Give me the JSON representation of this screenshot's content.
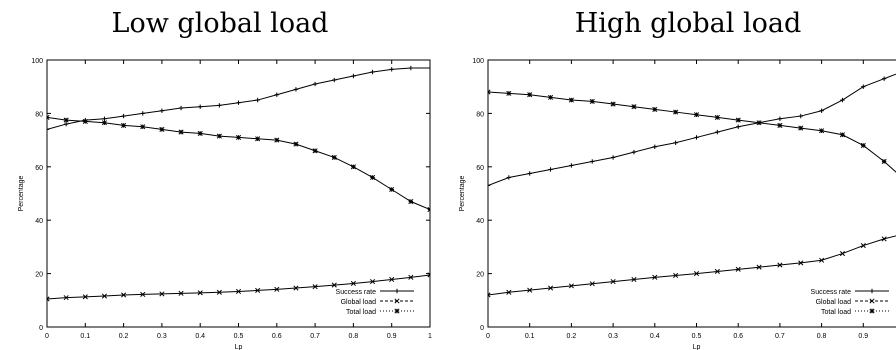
{
  "chart_data": [
    {
      "type": "line",
      "title": "Low global load",
      "xlabel": "Lp",
      "ylabel": "Percentage",
      "xlim": [
        0,
        1
      ],
      "ylim": [
        0,
        100
      ],
      "xticks": [
        "0",
        "0.1",
        "0.2",
        "0.3",
        "0.4",
        "0.5",
        "0.6",
        "0.7",
        "0.8",
        "0.9",
        "1"
      ],
      "yticks": [
        "0",
        "20",
        "40",
        "60",
        "80",
        "100"
      ],
      "grid": false,
      "legend": "bottom-right",
      "series": [
        {
          "name": "Success rate",
          "marker": "plus",
          "x": [
            0,
            0.05,
            0.1,
            0.15,
            0.2,
            0.25,
            0.3,
            0.35,
            0.4,
            0.45,
            0.5,
            0.55,
            0.6,
            0.65,
            0.7,
            0.75,
            0.8,
            0.85,
            0.9,
            0.95,
            1
          ],
          "y": [
            74,
            76,
            77.5,
            78,
            79,
            80,
            81,
            82,
            82.5,
            83,
            84,
            85,
            87,
            89,
            91,
            92.5,
            94,
            95.5,
            96.5,
            97,
            97
          ]
        },
        {
          "name": "Global load",
          "marker": "x",
          "x": [
            0,
            0.05,
            0.1,
            0.15,
            0.2,
            0.25,
            0.3,
            0.35,
            0.4,
            0.45,
            0.5,
            0.55,
            0.6,
            0.65,
            0.7,
            0.75,
            0.8,
            0.85,
            0.9,
            0.95,
            1
          ],
          "y": [
            10.5,
            11,
            11.3,
            11.6,
            12,
            12.2,
            12.4,
            12.6,
            12.8,
            13,
            13.3,
            13.7,
            14.1,
            14.6,
            15.1,
            15.7,
            16.3,
            17,
            17.8,
            18.6,
            19.5
          ]
        },
        {
          "name": "Total load",
          "marker": "asterisk",
          "x": [
            0,
            0.05,
            0.1,
            0.15,
            0.2,
            0.25,
            0.3,
            0.35,
            0.4,
            0.45,
            0.5,
            0.55,
            0.6,
            0.65,
            0.7,
            0.75,
            0.8,
            0.85,
            0.9,
            0.95,
            1
          ],
          "y": [
            78.5,
            77.5,
            77,
            76.5,
            75.5,
            75,
            74,
            73,
            72.5,
            71.5,
            71,
            70.5,
            70,
            68.5,
            66,
            63.5,
            60,
            56,
            51.5,
            47,
            44
          ]
        }
      ]
    },
    {
      "type": "line",
      "title": "High global load",
      "xlabel": "Lp",
      "ylabel": "Percentage",
      "xlim": [
        0,
        1
      ],
      "ylim": [
        0,
        100
      ],
      "xticks": [
        "0",
        "0.1",
        "0.2",
        "0.3",
        "0.4",
        "0.5",
        "0.6",
        "0.7",
        "0.8",
        "0.9"
      ],
      "yticks": [
        "0",
        "20",
        "40",
        "60",
        "80",
        "100"
      ],
      "grid": false,
      "legend": "bottom-right",
      "series": [
        {
          "name": "Success rate",
          "marker": "plus",
          "x": [
            0,
            0.05,
            0.1,
            0.15,
            0.2,
            0.25,
            0.3,
            0.35,
            0.4,
            0.45,
            0.5,
            0.55,
            0.6,
            0.65,
            0.7,
            0.75,
            0.8,
            0.85,
            0.9,
            0.95,
            1
          ],
          "y": [
            53,
            56,
            57.5,
            59,
            60.5,
            62,
            63.5,
            65.5,
            67.5,
            69,
            71,
            73,
            75,
            76.5,
            78,
            79,
            81,
            85,
            90,
            93,
            96
          ]
        },
        {
          "name": "Global load",
          "marker": "x",
          "x": [
            0,
            0.05,
            0.1,
            0.15,
            0.2,
            0.25,
            0.3,
            0.35,
            0.4,
            0.45,
            0.5,
            0.55,
            0.6,
            0.65,
            0.7,
            0.75,
            0.8,
            0.85,
            0.9,
            0.95,
            1
          ],
          "y": [
            12,
            13,
            13.8,
            14.6,
            15.4,
            16.2,
            17,
            17.8,
            18.6,
            19.3,
            20,
            20.8,
            21.6,
            22.4,
            23.2,
            24,
            25,
            27.5,
            30.5,
            33,
            35
          ]
        },
        {
          "name": "Total load",
          "marker": "asterisk",
          "x": [
            0,
            0.05,
            0.1,
            0.15,
            0.2,
            0.25,
            0.3,
            0.35,
            0.4,
            0.45,
            0.5,
            0.55,
            0.6,
            0.65,
            0.7,
            0.75,
            0.8,
            0.85,
            0.9,
            0.95,
            1
          ],
          "y": [
            88,
            87.5,
            87,
            86,
            85,
            84.5,
            83.5,
            82.5,
            81.5,
            80.5,
            79.5,
            78.5,
            77.5,
            76.5,
            75.5,
            74.5,
            73.5,
            72,
            68,
            62,
            55
          ]
        }
      ]
    }
  ]
}
